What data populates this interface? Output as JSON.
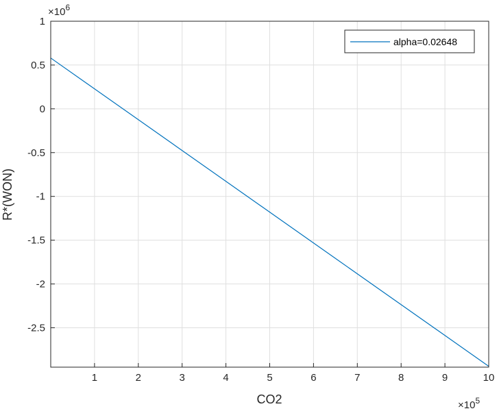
{
  "chart_data": {
    "type": "line",
    "xlabel": "CO2",
    "ylabel": "R*(WON)",
    "x_exponent_base": "×10",
    "x_exponent_power": "5",
    "y_exponent_base": "×10",
    "y_exponent_power": "6",
    "xlim": [
      0,
      10
    ],
    "ylim": [
      -2.95,
      1
    ],
    "x_tick_labels": [
      "1",
      "2",
      "3",
      "4",
      "5",
      "6",
      "7",
      "8",
      "9",
      "10"
    ],
    "y_tick_labels": [
      "1",
      "0.5",
      "0",
      "-0.5",
      "-1",
      "-1.5",
      "-2",
      "-2.5"
    ],
    "grid": true,
    "legend_position": "top-right",
    "series": [
      {
        "name": "alpha=0.02648",
        "color": "#0072BD",
        "x": [
          0,
          10
        ],
        "y": [
          0.58,
          -2.94
        ]
      }
    ]
  }
}
